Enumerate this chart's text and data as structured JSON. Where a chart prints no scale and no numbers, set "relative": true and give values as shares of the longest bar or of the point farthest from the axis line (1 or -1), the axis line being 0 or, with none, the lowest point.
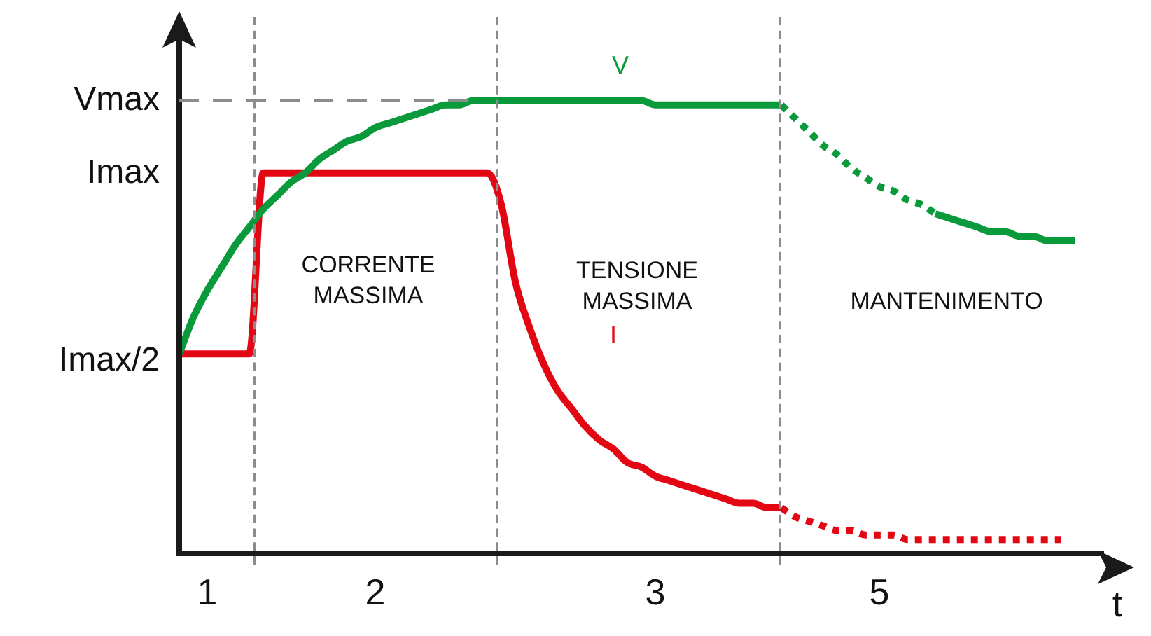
{
  "chart_data": {
    "type": "line",
    "relative": true,
    "xlabel": "t",
    "legend": false,
    "grid": false,
    "marker": "none",
    "categories": [
      null,
      null,
      "1",
      null,
      null,
      null,
      null,
      null,
      null,
      null,
      null,
      null,
      null,
      null,
      "2",
      null,
      null,
      null,
      null,
      null,
      null,
      null,
      null,
      null,
      null,
      null,
      null,
      null,
      null,
      null,
      null,
      null,
      null,
      null,
      "3",
      null,
      null,
      null,
      null,
      null,
      null,
      null,
      null,
      null,
      null,
      null,
      null,
      null,
      null,
      null,
      "5",
      null,
      null,
      null,
      null,
      null,
      null,
      null,
      null,
      null,
      null,
      null,
      null,
      null,
      null,
      null,
      null
    ],
    "series": [
      {
        "name": "V",
        "color": "#0a9a3c",
        "values": [
          0.44,
          0.52,
          0.58,
          0.63,
          0.68,
          0.72,
          0.76,
          0.79,
          0.82,
          0.84,
          0.87,
          0.89,
          0.91,
          0.92,
          0.94,
          0.95,
          0.96,
          0.97,
          0.98,
          0.99,
          0.99,
          1,
          1,
          1,
          1,
          1,
          1,
          1,
          1,
          1,
          1,
          1,
          1,
          1,
          0.99,
          0.99,
          0.99,
          0.99,
          0.99,
          0.99,
          0.99,
          0.99,
          0.99,
          0.99,
          null,
          null,
          null,
          null,
          null,
          null,
          null,
          null,
          null,
          null,
          null,
          null,
          null,
          null,
          null,
          null,
          null,
          null,
          null,
          null,
          null,
          null,
          null
        ]
      },
      {
        "color": "#0a9a3c",
        "line_style": "dotted",
        "values": [
          null,
          null,
          null,
          null,
          null,
          null,
          null,
          null,
          null,
          null,
          null,
          null,
          null,
          null,
          null,
          null,
          null,
          null,
          null,
          null,
          null,
          null,
          null,
          null,
          null,
          null,
          null,
          null,
          null,
          null,
          null,
          null,
          null,
          null,
          null,
          null,
          null,
          null,
          null,
          null,
          null,
          null,
          null,
          0.99,
          0.96,
          0.93,
          0.9,
          0.88,
          0.85,
          0.83,
          0.81,
          0.8,
          0.78,
          0.77,
          0.75,
          null,
          null,
          null,
          null,
          null,
          null,
          null,
          null,
          null,
          null,
          null,
          null
        ]
      },
      {
        "color": "#0a9a3c",
        "values": [
          null,
          null,
          null,
          null,
          null,
          null,
          null,
          null,
          null,
          null,
          null,
          null,
          null,
          null,
          null,
          null,
          null,
          null,
          null,
          null,
          null,
          null,
          null,
          null,
          null,
          null,
          null,
          null,
          null,
          null,
          null,
          null,
          null,
          null,
          null,
          null,
          null,
          null,
          null,
          null,
          null,
          null,
          null,
          null,
          null,
          null,
          null,
          null,
          null,
          null,
          null,
          null,
          null,
          null,
          0.75,
          0.74,
          0.73,
          0.72,
          0.71,
          0.71,
          0.7,
          0.7,
          0.69,
          0.69,
          0.69,
          null,
          null
        ]
      },
      {
        "name": "I",
        "color": "#e30613",
        "values": [
          0.44,
          0.44,
          0.44,
          0.44,
          0.44,
          0.44,
          0.84,
          0.84,
          0.84,
          0.84,
          0.84,
          0.84,
          0.84,
          0.84,
          0.84,
          0.84,
          0.84,
          0.84,
          0.84,
          0.84,
          0.84,
          0.84,
          0.84,
          0.77,
          0.6,
          0.5,
          0.42,
          0.36,
          0.32,
          0.28,
          0.25,
          0.23,
          0.2,
          0.19,
          0.17,
          0.16,
          0.15,
          0.14,
          0.13,
          0.12,
          0.11,
          0.11,
          0.1,
          0.1,
          null,
          null,
          null,
          null,
          null,
          null,
          null,
          null,
          null,
          null,
          null,
          null,
          null,
          null,
          null,
          null,
          null,
          null,
          null,
          null,
          null,
          null,
          null
        ]
      },
      {
        "color": "#e30613",
        "line_style": "dotted",
        "values": [
          null,
          null,
          null,
          null,
          null,
          null,
          null,
          null,
          null,
          null,
          null,
          null,
          null,
          null,
          null,
          null,
          null,
          null,
          null,
          null,
          null,
          null,
          null,
          null,
          null,
          null,
          null,
          null,
          null,
          null,
          null,
          null,
          null,
          null,
          null,
          null,
          null,
          null,
          null,
          null,
          null,
          null,
          null,
          0.1,
          0.08,
          0.07,
          0.06,
          0.05,
          0.05,
          0.04,
          0.04,
          0.04,
          0.03,
          0.03,
          0.03,
          0.03,
          0.03,
          0.03,
          0.03,
          0.03,
          0.03,
          0.03,
          0.03,
          0.03,
          null,
          null,
          null
        ]
      }
    ],
    "ref_lines": [
      {
        "axis": "y",
        "value": 1,
        "label": "Vmax",
        "color": "#8c8c8c",
        "line_style": "dashed"
      }
    ],
    "annotations": [
      "Imax",
      "Imax/2",
      "CORRENTE MASSIMA",
      "TENSIONE MASSIMA",
      "MANTENIMENTO"
    ]
  }
}
